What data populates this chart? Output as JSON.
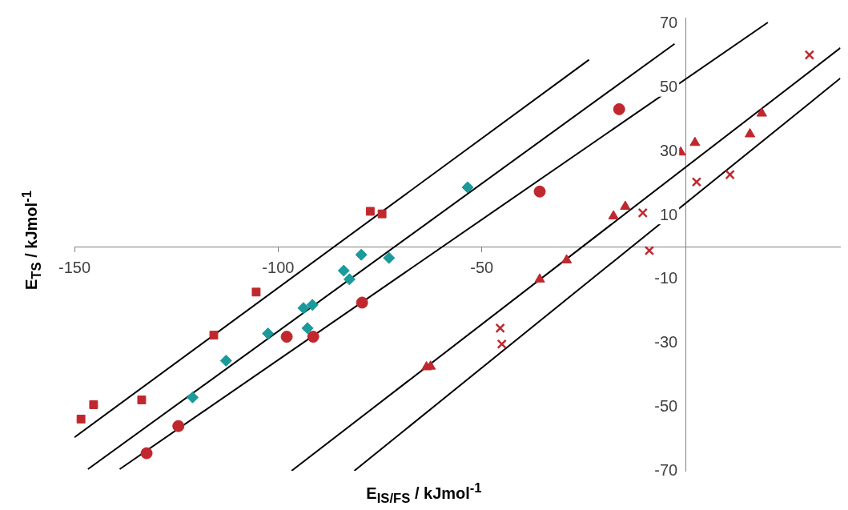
{
  "chart_data": {
    "type": "scatter",
    "xlabel": "E$_{IS/FS}$ / kJmol$^{-1}$",
    "ylabel": "E$_{TS}$ / kJmol$^{-1}$",
    "xlim": [
      -150,
      38
    ],
    "xticks": [
      -150,
      -100,
      -50,
      {
        "value": 0,
        "label": null
      }
    ],
    "ylim": [
      -70,
      72
    ],
    "yticks": [
      -70,
      -50,
      -30,
      -10,
      10,
      30,
      50,
      70
    ],
    "grid": false,
    "legend": false,
    "series": [
      {
        "type": "scatter",
        "marker": "square",
        "color": "#c0282d",
        "x": [
          -148.4,
          -145.3,
          -133.5,
          -115.8,
          -105.4,
          -77.4,
          -74.5
        ],
        "values": [
          -53.8,
          -49.3,
          -47.8,
          -27.5,
          -14,
          11.3,
          10.5
        ]
      },
      {
        "type": "scatter",
        "marker": "circle",
        "color": "#c0282d",
        "x": [
          -132.3,
          -124.5,
          -97.9,
          -91.4,
          -79.4,
          -35.8,
          -16.3
        ],
        "values": [
          -64.5,
          -56,
          -28,
          -28,
          -17.3,
          17.5,
          43.3
        ]
      },
      {
        "type": "scatter",
        "marker": "diamond",
        "color": "#1a9a9a",
        "x": [
          -121,
          -112.8,
          -102.5,
          -93.8,
          -91.6,
          -92.8,
          -83.9,
          -82.5,
          -79.6,
          -72.8,
          -53.5
        ],
        "values": [
          -47,
          -35.5,
          -27,
          -19,
          -18,
          -25.3,
          -7.3,
          -10,
          -2.3,
          -3.3,
          18.8
        ]
      },
      {
        "type": "scatter",
        "marker": "triangle",
        "color": "#c0282d",
        "x": [
          -63.6,
          -62.6,
          -35.8,
          -29.2,
          -17.7,
          -14.8,
          -1.2,
          2.3,
          15.8,
          18.7
        ],
        "values": [
          -37.5,
          -37.3,
          -10,
          -4,
          9.8,
          12.8,
          29.8,
          32.8,
          35.5,
          42
        ]
      },
      {
        "type": "scatter",
        "marker": "cross",
        "color": "#c0282d",
        "x": [
          -45.5,
          -45.1,
          -10.5,
          -8.9,
          2.7,
          10.9,
          30.4
        ],
        "values": [
          -25.3,
          -30.3,
          10.8,
          -1,
          20.5,
          22.8,
          60.3
        ]
      },
      {
        "type": "line",
        "marker": "none",
        "color": "#000000",
        "x": [
          -150,
          -23.7
        ],
        "values": [
          -59.5,
          58.8
        ]
      },
      {
        "type": "line",
        "marker": "none",
        "color": "#000000",
        "x": [
          -146.7,
          -2.7
        ],
        "values": [
          -69.5,
          63.8
        ]
      },
      {
        "type": "line",
        "marker": "none",
        "color": "#000000",
        "x": [
          -138.9,
          20.2
        ],
        "values": [
          -69.5,
          70.5
        ]
      },
      {
        "type": "line",
        "marker": "none",
        "color": "#000000",
        "x": [
          -96.7,
          38
        ],
        "values": [
          -70,
          62.5
        ]
      },
      {
        "type": "line",
        "marker": "none",
        "color": "#000000",
        "x": [
          -81.3,
          38
        ],
        "values": [
          -70,
          53
        ]
      }
    ]
  }
}
